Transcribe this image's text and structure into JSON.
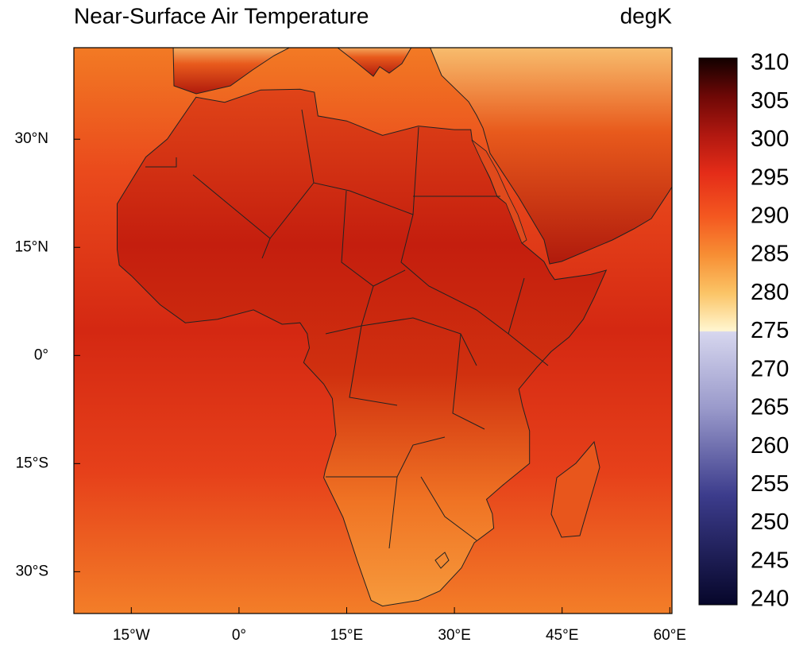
{
  "title": "Near-Surface Air Temperature",
  "units": "degK",
  "map": {
    "xlim": [
      -23,
      60.3
    ],
    "ylim": [
      -35.8,
      42.7
    ],
    "xticks": [
      {
        "value": -15,
        "label": "15°W"
      },
      {
        "value": 0,
        "label": "0°"
      },
      {
        "value": 15,
        "label": "15°E"
      },
      {
        "value": 30,
        "label": "30°E"
      },
      {
        "value": 45,
        "label": "45°E"
      },
      {
        "value": 60,
        "label": "60°E"
      }
    ],
    "yticks": [
      {
        "value": 30,
        "label": "30°N"
      },
      {
        "value": 15,
        "label": "15°N"
      },
      {
        "value": 0,
        "label": "0°"
      },
      {
        "value": -15,
        "label": "15°S"
      },
      {
        "value": -30,
        "label": "30°S"
      }
    ]
  },
  "colorbar": {
    "range": [
      240,
      310
    ],
    "ticks": [
      240,
      245,
      250,
      255,
      260,
      265,
      270,
      275,
      280,
      285,
      290,
      295,
      300,
      305,
      310
    ]
  }
}
